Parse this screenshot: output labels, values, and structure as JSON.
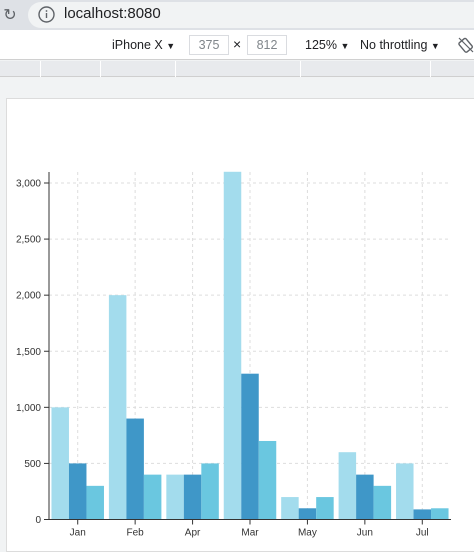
{
  "browser": {
    "url": "localhost:8080"
  },
  "device_toolbar": {
    "device": "iPhone X",
    "width": "375",
    "times": "×",
    "height": "812",
    "zoom": "125%",
    "throttling": "No throttling",
    "dropdown_glyph": "▼"
  },
  "colors": {
    "series_1": "#a3dced",
    "series_2": "#3f97c8",
    "series_3": "#6ac7e0",
    "grid": "#dddddd",
    "axis": "#333333"
  },
  "chart_data": {
    "type": "bar",
    "categories": [
      "Jan",
      "Feb",
      "Apr",
      "Mar",
      "May",
      "Jun",
      "Jul"
    ],
    "series": [
      {
        "values": [
          1000,
          2000,
          400,
          3100,
          200,
          600,
          500
        ]
      },
      {
        "values": [
          500,
          900,
          400,
          1300,
          100,
          400,
          90
        ]
      },
      {
        "values": [
          300,
          400,
          500,
          700,
          200,
          300,
          100
        ]
      }
    ],
    "y_ticks": [
      "0",
      "500",
      "1,000",
      "1,500",
      "2,000",
      "2,500",
      "3,000"
    ],
    "y_tick_values": [
      0,
      500,
      1000,
      1500,
      2000,
      2500,
      3000
    ],
    "ylim": [
      0,
      3100
    ],
    "grid": true,
    "legend": "none"
  }
}
